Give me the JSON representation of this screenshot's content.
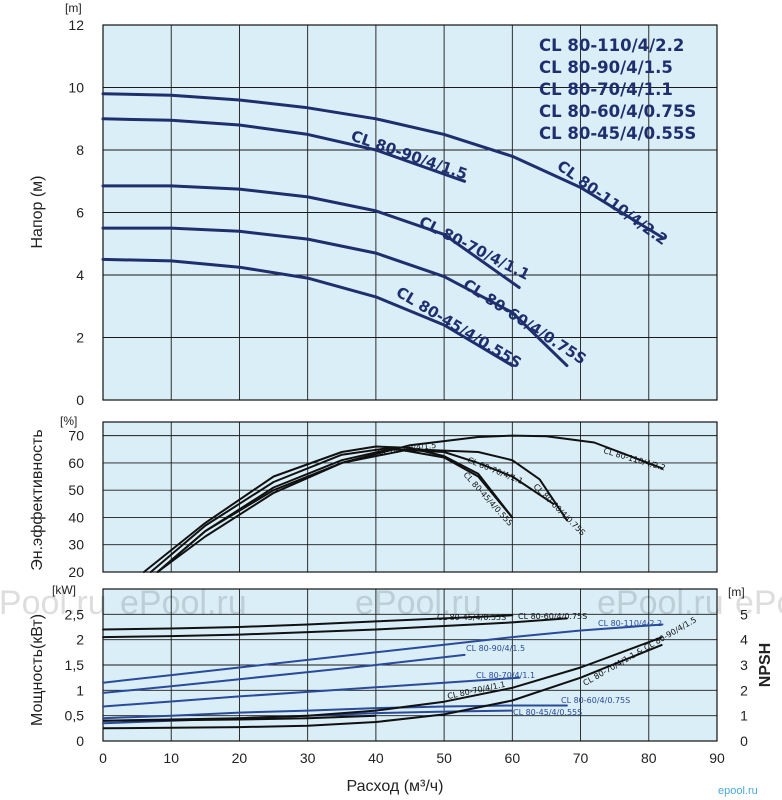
{
  "colors": {
    "plot_bg": "#d9eef7",
    "grid": "#1a1a1a",
    "navy": "#1f2f6e",
    "black": "#111111",
    "blue": "#2a4a9a"
  },
  "chart_data": [
    {
      "type": "line",
      "panel": "head",
      "ylabel": "Напор (м)",
      "yunit": "[m]",
      "xlim": [
        0,
        90
      ],
      "ylim": [
        0,
        12
      ],
      "yticks": [
        "0",
        "2",
        "4",
        "6",
        "8",
        "10",
        "12"
      ],
      "legend": [
        "CL 80-110/4/2.2",
        "CL 80-90/4/1.5",
        "CL 80-70/4/1.1",
        "CL 80-60/4/0.75S",
        "CL 80-45/4/0.55S"
      ],
      "series": [
        {
          "name": "CL 80-110/4/2.2",
          "x": [
            0,
            10,
            20,
            30,
            40,
            50,
            60,
            70,
            82
          ],
          "y": [
            9.8,
            9.75,
            9.6,
            9.35,
            9.0,
            8.5,
            7.8,
            6.8,
            5.2
          ]
        },
        {
          "name": "CL 80-90/4/1.5",
          "x": [
            0,
            10,
            20,
            30,
            40,
            53
          ],
          "y": [
            9.0,
            8.95,
            8.8,
            8.5,
            8.0,
            7.0
          ]
        },
        {
          "name": "CL 80-70/4/1.1",
          "x": [
            0,
            10,
            20,
            30,
            40,
            50,
            61
          ],
          "y": [
            6.85,
            6.85,
            6.75,
            6.5,
            6.05,
            5.3,
            3.6
          ]
        },
        {
          "name": "CL 80-60/4/0.75S",
          "x": [
            0,
            10,
            20,
            30,
            40,
            50,
            60,
            68
          ],
          "y": [
            5.5,
            5.5,
            5.4,
            5.15,
            4.7,
            3.95,
            2.8,
            1.1
          ]
        },
        {
          "name": "CL 80-45/4/0.55S",
          "x": [
            0,
            10,
            20,
            30,
            40,
            50,
            60
          ],
          "y": [
            4.5,
            4.45,
            4.25,
            3.9,
            3.3,
            2.4,
            1.1
          ]
        }
      ]
    },
    {
      "type": "line",
      "panel": "efficiency",
      "ylabel": "Эн.эффективность",
      "yunit": "[%]",
      "xlim": [
        0,
        90
      ],
      "ylim": [
        20,
        75
      ],
      "yticks": [
        "20",
        "30",
        "40",
        "50",
        "60",
        "70"
      ],
      "series": [
        {
          "name": "CL 80-110/4/2.2",
          "x": [
            8,
            15,
            25,
            35,
            45,
            55,
            60,
            65,
            72,
            82
          ],
          "y": [
            20,
            33,
            49,
            60,
            66.5,
            69.5,
            70,
            69.8,
            67.5,
            58
          ]
        },
        {
          "name": "CL 80-90/4/1.5",
          "x": [
            6,
            15,
            25,
            35,
            40,
            45,
            50,
            55,
            60
          ],
          "y": [
            20,
            38,
            55,
            64,
            66,
            65.5,
            62.5,
            56,
            40
          ]
        },
        {
          "name": "CL 80-70/4/1.1",
          "x": [
            8,
            15,
            25,
            35,
            42,
            50,
            55,
            60,
            66
          ],
          "y": [
            20,
            35,
            51,
            61,
            65,
            64,
            60,
            55,
            45
          ]
        },
        {
          "name": "CL 80-60/4/0.75S",
          "x": [
            8,
            15,
            25,
            35,
            45,
            55,
            60,
            64,
            68
          ],
          "y": [
            20,
            35,
            50,
            60,
            65,
            64,
            61,
            54,
            39
          ]
        },
        {
          "name": "CL 80-45/4/0.55S",
          "x": [
            7,
            15,
            25,
            35,
            42,
            50,
            55,
            60
          ],
          "y": [
            20,
            37,
            53,
            63,
            65.5,
            62,
            55,
            40
          ]
        }
      ]
    },
    {
      "type": "line",
      "panel": "power",
      "ylabel": "Мощность(кВт)",
      "yunit": "[kW]",
      "y2label": "NPSH",
      "y2unit": "[m]",
      "xlabel": "Расход (м³/ч)",
      "xlim": [
        0,
        90
      ],
      "xticks": [
        "0",
        "10",
        "20",
        "30",
        "40",
        "50",
        "60",
        "70",
        "80",
        "90"
      ],
      "ylim": [
        0,
        3
      ],
      "yticks": [
        "0",
        "0,5",
        "1",
        "1,5",
        "2",
        "2,5"
      ],
      "y2lim": [
        0,
        6
      ],
      "y2ticks": [
        "0",
        "1",
        "2",
        "3",
        "4",
        "5"
      ],
      "series": [
        {
          "name": "CL 80-45/4/0.55S",
          "x": [
            0,
            10,
            20,
            30,
            40,
            50,
            60
          ],
          "y": [
            2.2,
            2.22,
            2.25,
            2.3,
            2.36,
            2.42,
            2.48
          ]
        },
        {
          "name": "CL 80-60/4/0.75S",
          "x": [
            0,
            10,
            20,
            30,
            40,
            50,
            60,
            68
          ],
          "y": [
            2.05,
            2.07,
            2.1,
            2.15,
            2.2,
            2.27,
            2.34,
            2.42
          ]
        },
        {
          "name": "CL 80-110/4/2.2",
          "x": [
            0,
            10,
            20,
            30,
            40,
            50,
            60,
            70,
            82
          ],
          "y": [
            1.15,
            1.3,
            1.45,
            1.6,
            1.75,
            1.9,
            2.05,
            2.18,
            2.3
          ]
        },
        {
          "name": "CL 80-90/4/1.5",
          "x": [
            0,
            10,
            20,
            30,
            40,
            53
          ],
          "y": [
            0.95,
            1.08,
            1.22,
            1.36,
            1.5,
            1.7
          ]
        },
        {
          "name": "CL 80-70/4/1.1",
          "x": [
            0,
            10,
            20,
            30,
            40,
            50,
            61
          ],
          "y": [
            0.68,
            0.78,
            0.88,
            0.97,
            1.06,
            1.15,
            1.25
          ]
        },
        {
          "name": "CL 80-60/4/0.75S",
          "x": [
            0,
            10,
            20,
            30,
            40,
            50,
            60,
            68
          ],
          "y": [
            0.45,
            0.5,
            0.56,
            0.6,
            0.65,
            0.68,
            0.7,
            0.7
          ]
        },
        {
          "name": "CL 80-45/4/0.55S",
          "x": [
            0,
            10,
            20,
            30,
            40,
            50,
            60
          ],
          "y": [
            0.35,
            0.4,
            0.45,
            0.5,
            0.55,
            0.58,
            0.6
          ]
        }
      ],
      "npsh_series": [
        {
          "name": "CL 80-70/4/1.1 & CL 80-90/4/1.5",
          "x": [
            0,
            10,
            20,
            30,
            40,
            50,
            60,
            70,
            82
          ],
          "y": [
            0.8,
            0.85,
            0.9,
            1.0,
            1.2,
            1.55,
            2.1,
            2.9,
            4.1
          ]
        },
        {
          "name": "CL 80-110/4/2.2",
          "x": [
            0,
            10,
            20,
            30,
            40,
            50,
            60,
            70,
            82
          ],
          "y": [
            0.5,
            0.52,
            0.55,
            0.6,
            0.75,
            1.05,
            1.6,
            2.5,
            3.8
          ]
        },
        {
          "name": "CL 80-70/4/1.1",
          "x": [
            0,
            10,
            20,
            30,
            40
          ],
          "y": [
            0.8,
            0.82,
            0.85,
            0.9,
            1.0
          ]
        }
      ]
    }
  ],
  "watermarks": [
    "ePool.ru",
    "ePool.ru",
    "ePool.ru",
    "ePool.ru",
    "ePool.ru"
  ],
  "corner_mark": "epool.ru"
}
